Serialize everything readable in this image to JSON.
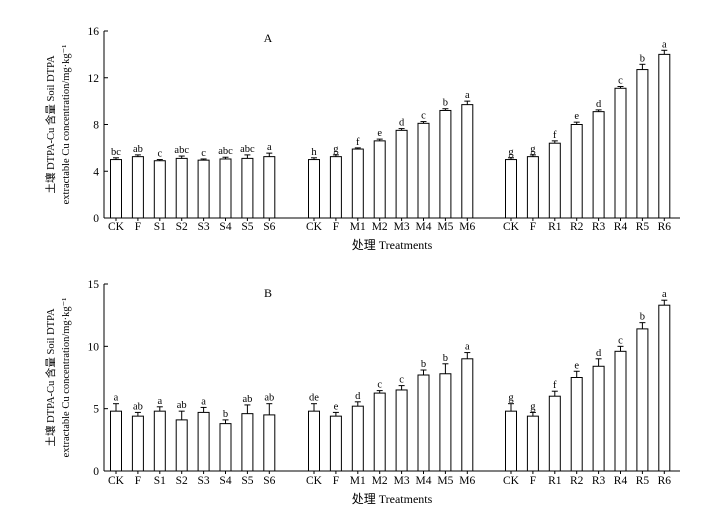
{
  "chart_data": [
    {
      "type": "bar",
      "panel_label": "A",
      "ylabel_line1": "土壤 DTPA-Cu 含量 Soil DTPA",
      "ylabel_line2": "extractable Cu concentration/mg·kg⁻¹",
      "xlabel": "处理 Treatments",
      "ylim": [
        0,
        16
      ],
      "yticks": [
        0,
        4,
        8,
        12,
        16
      ],
      "groups": [
        {
          "categories": [
            "CK",
            "F",
            "S1",
            "S2",
            "S3",
            "S4",
            "S5",
            "S6"
          ],
          "values": [
            5.0,
            5.25,
            4.9,
            5.1,
            4.95,
            5.05,
            5.1,
            5.25
          ],
          "errors": [
            0.15,
            0.15,
            0.1,
            0.2,
            0.1,
            0.15,
            0.3,
            0.3
          ],
          "letters": [
            "bc",
            "ab",
            "c",
            "abc",
            "c",
            "abc",
            "abc",
            "a"
          ]
        },
        {
          "categories": [
            "CK",
            "F",
            "M1",
            "M2",
            "M3",
            "M4",
            "M5",
            "M6"
          ],
          "values": [
            5.0,
            5.25,
            5.9,
            6.6,
            7.5,
            8.1,
            9.2,
            9.7
          ],
          "errors": [
            0.15,
            0.15,
            0.1,
            0.15,
            0.15,
            0.15,
            0.15,
            0.3
          ],
          "letters": [
            "h",
            "g",
            "f",
            "e",
            "d",
            "c",
            "b",
            "a"
          ]
        },
        {
          "categories": [
            "CK",
            "F",
            "R1",
            "R2",
            "R3",
            "R4",
            "R5",
            "R6"
          ],
          "values": [
            5.0,
            5.25,
            6.4,
            8.0,
            9.1,
            11.1,
            12.7,
            14.0
          ],
          "errors": [
            0.15,
            0.15,
            0.2,
            0.2,
            0.15,
            0.15,
            0.45,
            0.35
          ],
          "letters": [
            "g",
            "g",
            "f",
            "e",
            "d",
            "c",
            "b",
            "a"
          ]
        }
      ]
    },
    {
      "type": "bar",
      "panel_label": "B",
      "ylabel_line1": "土壤 DTPA-Cu 含量 Soil DTPA",
      "ylabel_line2": "extractable Cu concentration/mg·kg⁻¹",
      "xlabel": "处理 Treatments",
      "ylim": [
        0,
        15
      ],
      "yticks": [
        0,
        5,
        10,
        15
      ],
      "groups": [
        {
          "categories": [
            "CK",
            "F",
            "S1",
            "S2",
            "S3",
            "S4",
            "S5",
            "S6"
          ],
          "values": [
            4.8,
            4.4,
            4.8,
            4.1,
            4.7,
            3.8,
            4.6,
            4.5
          ],
          "errors": [
            0.6,
            0.3,
            0.35,
            0.7,
            0.4,
            0.3,
            0.7,
            0.9
          ],
          "letters": [
            "a",
            "ab",
            "a",
            "ab",
            "a",
            "b",
            "ab",
            "ab"
          ]
        },
        {
          "categories": [
            "CK",
            "F",
            "M1",
            "M2",
            "M3",
            "M4",
            "M5",
            "M6"
          ],
          "values": [
            4.8,
            4.4,
            5.2,
            6.25,
            6.5,
            7.7,
            7.8,
            9.0
          ],
          "errors": [
            0.6,
            0.3,
            0.35,
            0.2,
            0.35,
            0.4,
            0.8,
            0.5
          ],
          "letters": [
            "de",
            "e",
            "d",
            "c",
            "c",
            "b",
            "b",
            "a"
          ]
        },
        {
          "categories": [
            "CK",
            "F",
            "R1",
            "R2",
            "R3",
            "R4",
            "R5",
            "R6"
          ],
          "values": [
            4.8,
            4.4,
            6.0,
            7.5,
            8.4,
            9.6,
            11.4,
            13.3
          ],
          "errors": [
            0.6,
            0.3,
            0.4,
            0.5,
            0.6,
            0.4,
            0.5,
            0.4
          ],
          "letters": [
            "g",
            "g",
            "f",
            "e",
            "d",
            "c",
            "b",
            "a"
          ]
        }
      ]
    }
  ]
}
